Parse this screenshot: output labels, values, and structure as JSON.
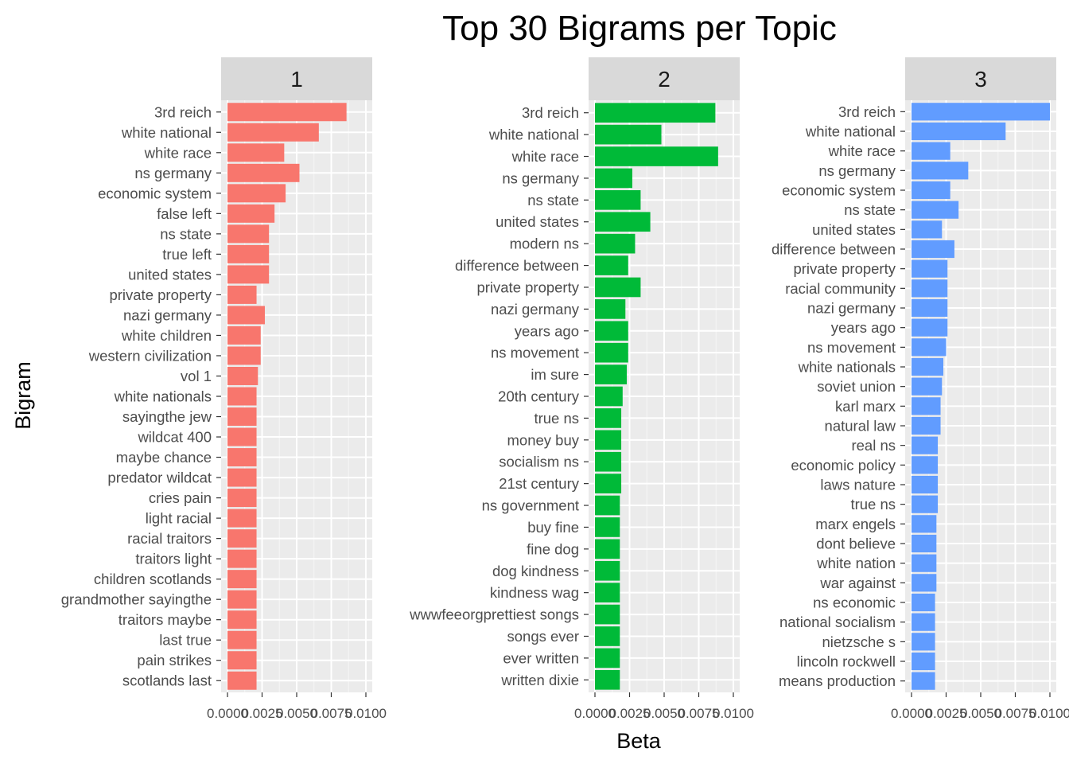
{
  "chart_data": {
    "type": "bar",
    "orientation": "horizontal",
    "title": "Top 30 Bigrams per Topic",
    "xlabel": "Beta",
    "ylabel": "Bigram",
    "xlim": [
      0,
      0.01
    ],
    "x_ticks": [
      0,
      0.0025,
      0.005,
      0.0075,
      0.01
    ],
    "x_tick_labels": [
      "0.0000",
      "0.0025",
      "0.0050",
      "0.0075",
      "0.0100"
    ],
    "grid": true,
    "legend": "none",
    "facets": [
      {
        "label": "1",
        "color": "#F8766D",
        "categories": [
          "3rd reich",
          "white national",
          "white race",
          "ns germany",
          "economic system",
          "false left",
          "ns state",
          "true left",
          "united states",
          "private property",
          "nazi germany",
          "white children",
          "western civilization",
          "vol 1",
          "white nationals",
          "sayingthe jew",
          "wildcat 400",
          "maybe chance",
          "predator wildcat",
          "cries pain",
          "light racial",
          "racial traitors",
          "traitors light",
          "children scotlands",
          "grandmother sayingthe",
          "traitors maybe",
          "last true",
          "pain strikes",
          "scotlands last"
        ],
        "values": [
          0.0086,
          0.0066,
          0.0041,
          0.0052,
          0.0042,
          0.0034,
          0.003,
          0.003,
          0.003,
          0.0021,
          0.0027,
          0.0024,
          0.0024,
          0.0022,
          0.0021,
          0.0021,
          0.0021,
          0.0021,
          0.0021,
          0.0021,
          0.0021,
          0.0021,
          0.0021,
          0.0021,
          0.0021,
          0.0021,
          0.0021,
          0.0021,
          0.0021
        ]
      },
      {
        "label": "2",
        "color": "#00BA38",
        "categories": [
          "3rd reich",
          "white national",
          "white race",
          "ns germany",
          "ns state",
          "united states",
          "modern ns",
          "difference between",
          "private property",
          "nazi germany",
          "years ago",
          "ns movement",
          "im sure",
          "20th century",
          "true ns",
          "money buy",
          "socialism ns",
          "21st century",
          "ns government",
          "buy fine",
          "fine dog",
          "dog kindness",
          "kindness wag",
          "wwwfeeorgprettiest songs",
          "songs ever",
          "ever written",
          "written dixie"
        ],
        "values": [
          0.0087,
          0.0048,
          0.0089,
          0.0027,
          0.0033,
          0.004,
          0.0029,
          0.0024,
          0.0033,
          0.0022,
          0.0024,
          0.0024,
          0.0023,
          0.002,
          0.0019,
          0.0019,
          0.0019,
          0.0019,
          0.0018,
          0.0018,
          0.0018,
          0.0018,
          0.0018,
          0.0018,
          0.0018,
          0.0018,
          0.0018
        ]
      },
      {
        "label": "3",
        "color": "#619CFF",
        "categories": [
          "3rd reich",
          "white national",
          "white race",
          "ns germany",
          "economic system",
          "ns state",
          "united states",
          "difference between",
          "private property",
          "racial community",
          "nazi germany",
          "years ago",
          "ns movement",
          "white nationals",
          "soviet union",
          "karl marx",
          "natural law",
          "real ns",
          "economic policy",
          "laws nature",
          "true ns",
          "marx engels",
          "dont believe",
          "white nation",
          "war against",
          "ns economic",
          "national socialism",
          "nietzsche s",
          "lincoln rockwell",
          "means production"
        ],
        "values": [
          0.01,
          0.0068,
          0.0028,
          0.0041,
          0.0028,
          0.0034,
          0.0022,
          0.0031,
          0.0026,
          0.0026,
          0.0026,
          0.0026,
          0.0025,
          0.0023,
          0.0022,
          0.0021,
          0.0021,
          0.0019,
          0.0019,
          0.0019,
          0.0019,
          0.0018,
          0.0018,
          0.0018,
          0.0018,
          0.0017,
          0.0017,
          0.0017,
          0.0017,
          0.0017
        ]
      }
    ]
  }
}
